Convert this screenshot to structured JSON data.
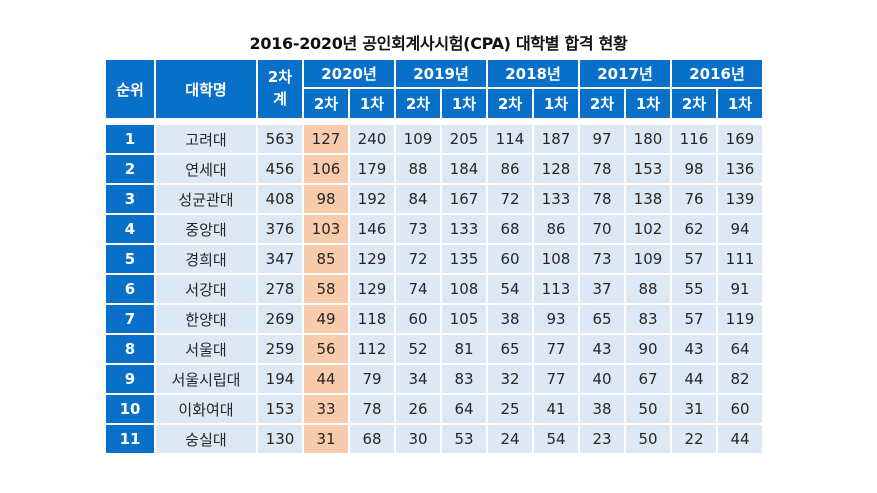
{
  "title": "2016-2020년 공인회계사시험(CPA) 대학별 합격 현황",
  "colors": {
    "header_bg": "#0870c8",
    "cell_bg": "#dce9f5",
    "highlight_bg": "#f8cbad"
  },
  "headers": {
    "rank": "순위",
    "university": "대학명",
    "total": "2차\n계",
    "years": [
      "2020년",
      "2019년",
      "2018년",
      "2017년",
      "2016년"
    ],
    "second": "2차",
    "first": "1차"
  },
  "rows": [
    {
      "rank": "1",
      "name": "고려대",
      "total": "563",
      "vals": [
        "127",
        "240",
        "109",
        "205",
        "114",
        "187",
        "97",
        "180",
        "116",
        "169"
      ]
    },
    {
      "rank": "2",
      "name": "연세대",
      "total": "456",
      "vals": [
        "106",
        "179",
        "88",
        "184",
        "86",
        "128",
        "78",
        "153",
        "98",
        "136"
      ]
    },
    {
      "rank": "3",
      "name": "성균관대",
      "total": "408",
      "vals": [
        "98",
        "192",
        "84",
        "167",
        "72",
        "133",
        "78",
        "138",
        "76",
        "139"
      ]
    },
    {
      "rank": "4",
      "name": "중앙대",
      "total": "376",
      "vals": [
        "103",
        "146",
        "73",
        "133",
        "68",
        "86",
        "70",
        "102",
        "62",
        "94"
      ]
    },
    {
      "rank": "5",
      "name": "경희대",
      "total": "347",
      "vals": [
        "85",
        "129",
        "72",
        "135",
        "60",
        "108",
        "73",
        "109",
        "57",
        "111"
      ]
    },
    {
      "rank": "6",
      "name": "서강대",
      "total": "278",
      "vals": [
        "58",
        "129",
        "74",
        "108",
        "54",
        "113",
        "37",
        "88",
        "55",
        "91"
      ]
    },
    {
      "rank": "7",
      "name": "한양대",
      "total": "269",
      "vals": [
        "49",
        "118",
        "60",
        "105",
        "38",
        "93",
        "65",
        "83",
        "57",
        "119"
      ]
    },
    {
      "rank": "8",
      "name": "서울대",
      "total": "259",
      "vals": [
        "56",
        "112",
        "52",
        "81",
        "65",
        "77",
        "43",
        "90",
        "43",
        "64"
      ]
    },
    {
      "rank": "9",
      "name": "서울시립대",
      "total": "194",
      "vals": [
        "44",
        "79",
        "34",
        "83",
        "32",
        "77",
        "40",
        "67",
        "44",
        "82"
      ]
    },
    {
      "rank": "10",
      "name": "이화여대",
      "total": "153",
      "vals": [
        "33",
        "78",
        "26",
        "64",
        "25",
        "41",
        "38",
        "50",
        "31",
        "60"
      ]
    },
    {
      "rank": "11",
      "name": "숭실대",
      "total": "130",
      "vals": [
        "31",
        "68",
        "30",
        "53",
        "24",
        "54",
        "23",
        "50",
        "22",
        "44"
      ]
    }
  ]
}
